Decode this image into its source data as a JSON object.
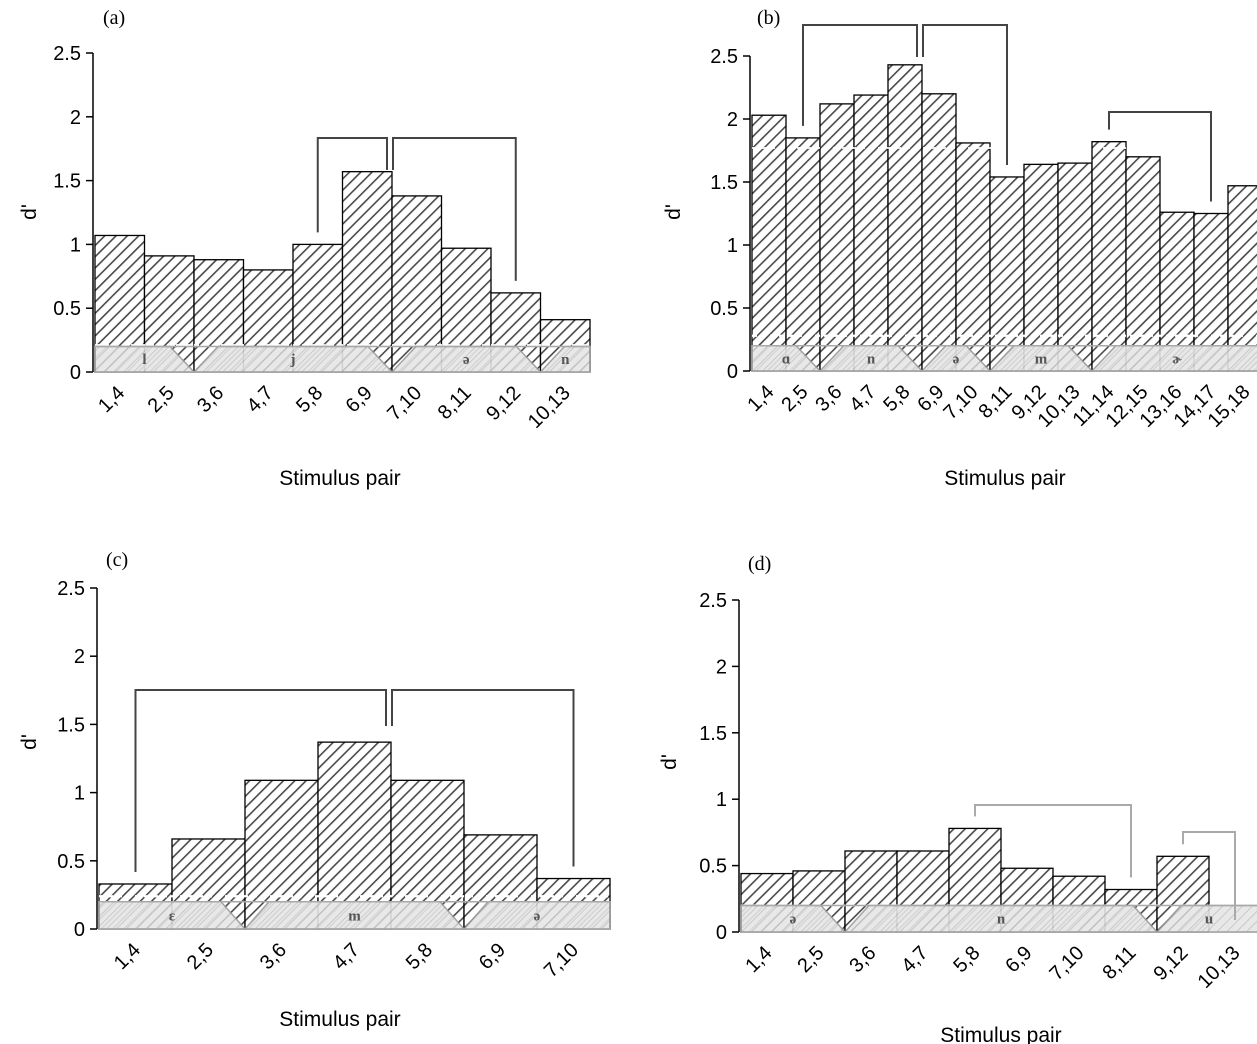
{
  "chart_data": [
    {
      "type": "bar",
      "panel_label": "(a)",
      "xlabel": "Stimulus pair",
      "ylabel": "d'",
      "ylim": [
        0,
        2.5
      ],
      "yticks": [
        "0",
        "0.5",
        "1",
        "1.5",
        "2",
        "2.5"
      ],
      "categories": [
        "1,4",
        "2,5",
        "3,6",
        "4,7",
        "5,8",
        "6,9",
        "7,10",
        "8,11",
        "9,12",
        "10,13"
      ],
      "values": [
        1.07,
        0.91,
        0.88,
        0.8,
        1.0,
        1.57,
        1.38,
        0.97,
        0.62,
        0.41
      ],
      "baseline": 0.21,
      "segments": [
        {
          "label": "l",
          "value": 0.2
        },
        {
          "label": "j",
          "value": 0.2
        },
        {
          "label": "ə",
          "value": 0.2
        },
        {
          "label": "n",
          "value": 0.2
        }
      ]
    },
    {
      "type": "bar",
      "panel_label": "(b)",
      "xlabel": "Stimulus pair",
      "ylabel": "d'",
      "ylim": [
        0,
        2.5
      ],
      "yticks": [
        "0",
        "0.5",
        "1",
        "1.5",
        "2",
        "2.5"
      ],
      "categories": [
        "1,4",
        "2,5",
        "3,6",
        "4,7",
        "5,8",
        "6,9",
        "7,10",
        "8,11",
        "9,12",
        "10,13",
        "11,14",
        "12,15",
        "13,16",
        "14,17",
        "15,18"
      ],
      "values": [
        2.03,
        1.85,
        2.12,
        2.19,
        2.43,
        2.2,
        1.81,
        1.54,
        1.64,
        1.65,
        1.82,
        1.7,
        1.26,
        1.25,
        1.47
      ],
      "baseline": 0.28,
      "upper_line": 1.77,
      "segments": [
        {
          "label": "ɑ",
          "value": 0.2
        },
        {
          "label": "n",
          "value": 0.2
        },
        {
          "label": "ə",
          "value": 0.2
        },
        {
          "label": "m",
          "value": 0.2
        },
        {
          "label": "ɚ",
          "value": 0.2
        }
      ]
    },
    {
      "type": "bar",
      "panel_label": "(c)",
      "xlabel": "Stimulus pair",
      "ylabel": "d'",
      "ylim": [
        0,
        2.5
      ],
      "yticks": [
        "0",
        "0.5",
        "1",
        "1.5",
        "2",
        "2.5"
      ],
      "categories": [
        "1,4",
        "2,5",
        "3,6",
        "4,7",
        "5,8",
        "6,9",
        "7,10"
      ],
      "values": [
        0.33,
        0.66,
        1.09,
        1.37,
        1.09,
        0.69,
        0.37
      ],
      "baseline": 0.24,
      "segments": [
        {
          "label": "ɛ",
          "value": 0.2
        },
        {
          "label": "m",
          "value": 0.2
        },
        {
          "label": "ə",
          "value": 0.2
        }
      ]
    },
    {
      "type": "bar",
      "panel_label": "(d)",
      "xlabel": "Stimulus pair",
      "ylabel": "d'",
      "ylim": [
        0,
        2.5
      ],
      "yticks": [
        "0",
        "0.5",
        "1",
        "1.5",
        "2",
        "2.5"
      ],
      "categories": [
        "1,4",
        "2,5",
        "3,6",
        "4,7",
        "5,8",
        "6,9",
        "7,10",
        "8,11",
        "9,12",
        "10,13"
      ],
      "values": [
        0.44,
        0.46,
        0.61,
        0.61,
        0.78,
        0.48,
        0.42,
        0.32,
        0.57,
        0
      ],
      "baseline": 0.2,
      "segments": [
        {
          "label": "ə",
          "value": 0.2
        },
        {
          "label": "n",
          "value": 0.2
        },
        {
          "label": "u",
          "value": 0.2
        }
      ]
    }
  ]
}
